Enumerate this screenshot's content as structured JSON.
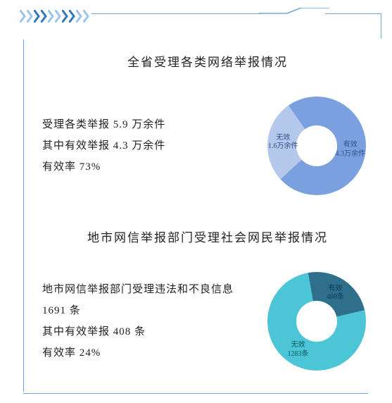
{
  "decor": {
    "chevron_color_light": "#9cc3ea",
    "chevron_color_dark": "#2f78c4",
    "frame_color": "#6fa5d8"
  },
  "sections": [
    {
      "title": "全省受理各类网络举报情况",
      "lines": [
        "受理各类举报 5.9 万余件",
        "其中有效举报 4.3 万余件",
        "有效率 73%"
      ],
      "chart": {
        "type": "donut",
        "inner_ratio": 0.41,
        "slices": [
          {
            "name": "有效",
            "value": 4.3,
            "unit": "万余件",
            "label_l1": "有效",
            "label_l2": "4.3万余件",
            "color": "#7aa0e0",
            "label_color": "#2f4f86"
          },
          {
            "name": "无效",
            "value": 1.6,
            "unit": "万余件",
            "label_l1": "无效",
            "label_l2": "1.6万余件",
            "color": "#b4c8ec",
            "label_color": "#2f4f86"
          }
        ],
        "start_angle_deg": -35
      }
    },
    {
      "title": "地市网信举报部门受理社会网民举报情况",
      "lines": [
        "地市网信举报部门受理违法和不良信息 1691 条",
        "其中有效举报 408 条",
        "有效率 24%"
      ],
      "chart": {
        "type": "donut",
        "inner_ratio": 0.41,
        "slices": [
          {
            "name": "有效",
            "value": 408,
            "unit": "条",
            "label_l1": "有效",
            "label_l2": "408条",
            "color": "#2f6f8c",
            "label_color": "#0c3c4e"
          },
          {
            "name": "无效",
            "value": 1283,
            "unit": "条",
            "label_l1": "无效",
            "label_l2": "1283条",
            "color": "#4cc6d6",
            "label_color": "#07565f"
          }
        ],
        "start_angle_deg": -10
      }
    }
  ]
}
